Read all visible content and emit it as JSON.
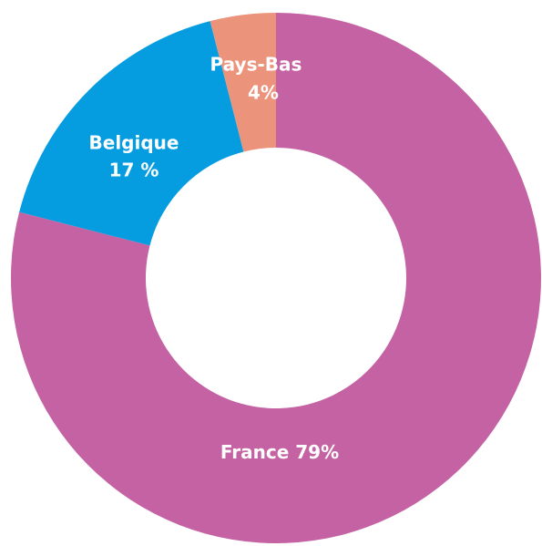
{
  "chart_data": {
    "type": "donut",
    "categories": [
      "France",
      "Belgique",
      "Pays-Bas"
    ],
    "values": [
      79,
      17,
      4
    ],
    "value_labels": [
      "79%",
      "17 %",
      "4%"
    ],
    "colors": [
      "#c462a3",
      "#069de0",
      "#ec937c"
    ]
  }
}
